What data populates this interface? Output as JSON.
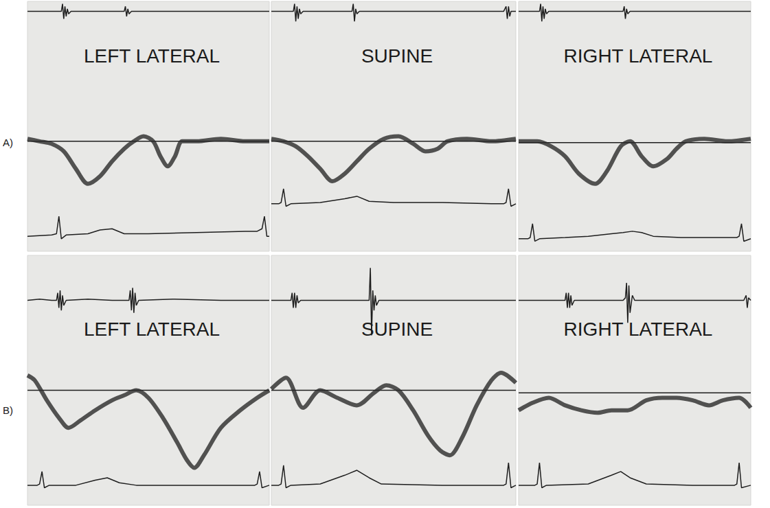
{
  "chart_data": [
    {
      "type": "line",
      "panel": "A)",
      "title": "LEFT LATERAL",
      "xlim": [
        0,
        100
      ],
      "ylim": [
        0,
        100
      ],
      "tick_labels": false,
      "grid": false,
      "series": [
        {
          "color": "#1e1e1e",
          "line_style": "solid",
          "x": [
            0,
            14,
            14.5,
            15,
            15.5,
            16,
            16.5,
            17,
            18,
            40,
            40.5,
            41,
            41.5,
            42,
            43,
            100
          ],
          "values": [
            96,
            96,
            99,
            93,
            98,
            94,
            97,
            95,
            96,
            96,
            98,
            94,
            97,
            95,
            96,
            96
          ]
        },
        {
          "color": "#1e1e1e",
          "line_style": "solid",
          "x": [
            0,
            100
          ],
          "values": [
            44,
            44
          ]
        },
        {
          "color": "#2a2a2a",
          "line_style": "speckled",
          "x": [
            0,
            5,
            10,
            15,
            20,
            25,
            30,
            35,
            40,
            44,
            48,
            52,
            55,
            58,
            61,
            64,
            70,
            80,
            90,
            100
          ],
          "values": [
            45,
            44,
            43,
            40,
            33,
            27,
            30,
            36,
            41,
            44,
            46,
            44,
            38,
            34,
            38,
            44,
            44,
            45,
            44,
            44
          ]
        },
        {
          "color": "#1e1e1e",
          "line_style": "solid",
          "x": [
            0,
            10,
            12,
            13,
            14,
            16,
            25,
            30,
            35,
            40,
            50,
            70,
            90,
            95,
            97,
            98,
            99,
            100
          ],
          "values": [
            6,
            6.5,
            7,
            14,
            5,
            6.5,
            7,
            8.5,
            9,
            7,
            7,
            7.5,
            8,
            8,
            9,
            14,
            6,
            6
          ]
        }
      ]
    },
    {
      "type": "line",
      "title": "SUPINE",
      "xlim": [
        0,
        100
      ],
      "ylim": [
        0,
        100
      ],
      "tick_labels": false,
      "grid": false,
      "series": [
        {
          "color": "#1e1e1e",
          "line_style": "solid",
          "x": [
            0,
            9,
            9.5,
            10,
            10.5,
            11,
            11.5,
            12,
            13,
            33,
            33.5,
            34,
            34.5,
            35,
            36,
            95,
            96,
            96.5,
            97,
            97.5,
            98,
            100
          ],
          "values": [
            96,
            96,
            99,
            92,
            98,
            93,
            97,
            95,
            96,
            96,
            99,
            92,
            97,
            95,
            96,
            96,
            98,
            93,
            98,
            94,
            96,
            96
          ]
        },
        {
          "color": "#1e1e1e",
          "line_style": "solid",
          "x": [
            0,
            100
          ],
          "values": [
            44,
            44
          ]
        },
        {
          "color": "#2a2a2a",
          "line_style": "speckled",
          "x": [
            0,
            5,
            10,
            15,
            20,
            25,
            30,
            35,
            40,
            46,
            52,
            58,
            63,
            68,
            72,
            80,
            90,
            100
          ],
          "values": [
            45,
            44,
            42,
            38,
            33,
            28,
            31,
            36,
            41,
            45,
            46,
            43,
            40,
            41,
            44,
            45,
            44,
            45
          ]
        },
        {
          "color": "#1e1e1e",
          "line_style": "solid",
          "x": [
            0,
            3,
            4,
            5,
            6,
            8,
            20,
            30,
            35,
            40,
            50,
            70,
            90,
            95,
            96,
            97,
            98,
            100
          ],
          "values": [
            19,
            19,
            19.5,
            25,
            18,
            19,
            19.5,
            21,
            22,
            20,
            19.5,
            19.5,
            19,
            19,
            19.5,
            25,
            18,
            19
          ]
        }
      ]
    },
    {
      "type": "line",
      "title": "RIGHT LATERAL",
      "xlim": [
        0,
        100
      ],
      "ylim": [
        0,
        100
      ],
      "tick_labels": false,
      "grid": false,
      "series": [
        {
          "color": "#1e1e1e",
          "line_style": "solid",
          "x": [
            0,
            9,
            9.5,
            10,
            10.5,
            11,
            11.5,
            12,
            13,
            45,
            45.5,
            46,
            46.5,
            47,
            48,
            100
          ],
          "values": [
            96,
            96,
            99,
            92,
            98,
            93,
            97,
            95,
            96,
            96,
            98,
            93,
            97,
            95,
            96,
            96
          ]
        },
        {
          "color": "#1e1e1e",
          "line_style": "solid",
          "x": [
            0,
            100
          ],
          "values": [
            43.5,
            43.5
          ]
        },
        {
          "color": "#2a2a2a",
          "line_style": "speckled",
          "x": [
            0,
            8,
            14,
            20,
            26,
            33,
            38,
            44,
            48,
            53,
            58,
            64,
            68,
            72,
            80,
            90,
            100
          ],
          "values": [
            44,
            44,
            42,
            38,
            31,
            27,
            32,
            42,
            44,
            38,
            34,
            37,
            41,
            44,
            45,
            44,
            45
          ]
        },
        {
          "color": "#1e1e1e",
          "line_style": "solid",
          "x": [
            0,
            4,
            5,
            6,
            7,
            9,
            20,
            30,
            40,
            45,
            49,
            53,
            58,
            70,
            90,
            94,
            95,
            96,
            97,
            100
          ],
          "values": [
            5,
            5,
            5.5,
            11,
            4,
            5,
            5.5,
            6,
            7,
            7.5,
            8,
            7.5,
            6,
            5.5,
            5.5,
            5.5,
            6,
            11,
            4,
            5
          ]
        }
      ]
    },
    {
      "type": "line",
      "panel": "B)",
      "title": "LEFT LATERAL",
      "xlim": [
        0,
        100
      ],
      "ylim": [
        0,
        100
      ],
      "tick_labels": false,
      "grid": false,
      "series": [
        {
          "color": "#1e1e1e",
          "line_style": "solid",
          "x": [
            0,
            5,
            10,
            12,
            12.5,
            13,
            13.5,
            14,
            14.5,
            15,
            16,
            25,
            35,
            42,
            42.5,
            43,
            43.5,
            44,
            44.5,
            45,
            46,
            60,
            80,
            100
          ],
          "values": [
            82,
            82.5,
            82,
            82,
            85,
            79,
            86,
            78,
            84,
            80,
            82,
            82.5,
            82,
            82,
            86,
            78,
            87,
            77,
            85,
            80,
            82,
            82.5,
            82,
            82
          ]
        },
        {
          "color": "#1e1e1e",
          "line_style": "solid",
          "x": [
            0,
            100
          ],
          "values": [
            46,
            46
          ]
        },
        {
          "color": "#2a2a2a",
          "line_style": "speckled",
          "x": [
            0,
            3,
            8,
            13,
            17,
            22,
            28,
            35,
            40,
            45,
            50,
            56,
            62,
            66,
            69,
            73,
            80,
            88,
            95,
            100
          ],
          "values": [
            52,
            50,
            42,
            35,
            31,
            34,
            38,
            42,
            44,
            46,
            43,
            35,
            25,
            18,
            15,
            20,
            31,
            38,
            43,
            46
          ]
        },
        {
          "color": "#1e1e1e",
          "line_style": "solid",
          "x": [
            0,
            4,
            5,
            6,
            7,
            9,
            20,
            28,
            33,
            38,
            45,
            70,
            92,
            94,
            95,
            96,
            97,
            100
          ],
          "values": [
            8,
            8,
            8.5,
            13.5,
            7,
            8,
            8,
            10,
            11,
            9,
            8,
            8,
            8,
            8,
            8.5,
            13.5,
            7,
            8
          ]
        }
      ]
    },
    {
      "type": "line",
      "title": "SUPINE",
      "xlim": [
        0,
        100
      ],
      "ylim": [
        0,
        100
      ],
      "tick_labels": false,
      "grid": false,
      "series": [
        {
          "color": "#1e1e1e",
          "line_style": "solid",
          "x": [
            0,
            8,
            8.5,
            9,
            9.5,
            10,
            10.5,
            11,
            12,
            40,
            40.5,
            41,
            41.5,
            42,
            42.5,
            43,
            44,
            100
          ],
          "values": [
            82,
            82,
            85,
            79,
            85,
            79,
            84,
            81,
            82,
            82,
            95,
            68,
            86,
            78,
            84,
            80,
            82,
            82
          ]
        },
        {
          "color": "#1e1e1e",
          "line_style": "solid",
          "x": [
            0,
            100
          ],
          "values": [
            46,
            46
          ]
        },
        {
          "color": "#2a2a2a",
          "line_style": "speckled",
          "x": [
            0,
            6,
            13,
            20,
            27,
            35,
            42,
            47,
            52,
            58,
            64,
            69,
            73,
            78,
            84,
            90,
            94,
            100
          ],
          "values": [
            46.5,
            51,
            39,
            46,
            43,
            40,
            45,
            48,
            46,
            38,
            28,
            22,
            20,
            27,
            40,
            50,
            53,
            49
          ]
        },
        {
          "color": "#1e1e1e",
          "line_style": "solid",
          "x": [
            0,
            3,
            4,
            5,
            6,
            8,
            20,
            30,
            35,
            40,
            45,
            70,
            94,
            95,
            96,
            97,
            98,
            100
          ],
          "values": [
            8,
            8,
            8.5,
            16,
            7,
            8,
            8.5,
            12,
            14,
            11,
            8.5,
            8,
            8,
            8,
            8.5,
            17,
            7,
            8
          ]
        }
      ]
    },
    {
      "type": "line",
      "title": "RIGHT LATERAL",
      "xlim": [
        0,
        100
      ],
      "ylim": [
        0,
        100
      ],
      "tick_labels": false,
      "grid": false,
      "series": [
        {
          "color": "#1e1e1e",
          "line_style": "solid",
          "x": [
            0,
            20,
            20.5,
            21,
            21.5,
            22,
            22.5,
            23,
            24,
            45,
            46,
            46.5,
            47,
            47.5,
            48,
            49,
            50,
            97,
            98,
            98.5,
            99,
            100
          ],
          "values": [
            82,
            82,
            85,
            79,
            85,
            79,
            84,
            80,
            82,
            82,
            83,
            89,
            73,
            88,
            77,
            84,
            82,
            82,
            84,
            79,
            83,
            82
          ]
        },
        {
          "color": "#1e1e1e",
          "line_style": "solid",
          "x": [
            0,
            100
          ],
          "values": [
            45,
            45
          ]
        },
        {
          "color": "#2a2a2a",
          "line_style": "speckled",
          "x": [
            0,
            6,
            13,
            20,
            27,
            34,
            40,
            47,
            55,
            62,
            68,
            75,
            82,
            88,
            95,
            100
          ],
          "values": [
            38,
            41,
            43,
            40,
            38,
            37,
            38,
            38,
            42,
            43,
            43,
            42,
            40,
            42,
            43,
            39
          ]
        },
        {
          "color": "#1e1e1e",
          "line_style": "solid",
          "x": [
            0,
            7,
            8,
            9,
            10,
            12,
            30,
            40,
            44,
            48,
            55,
            75,
            92,
            93,
            94,
            95,
            96,
            100
          ],
          "values": [
            8,
            8,
            8.5,
            17,
            7,
            8,
            8.5,
            12,
            13.5,
            11,
            8.5,
            8,
            8,
            8,
            8.5,
            17,
            7,
            8
          ]
        }
      ]
    }
  ]
}
